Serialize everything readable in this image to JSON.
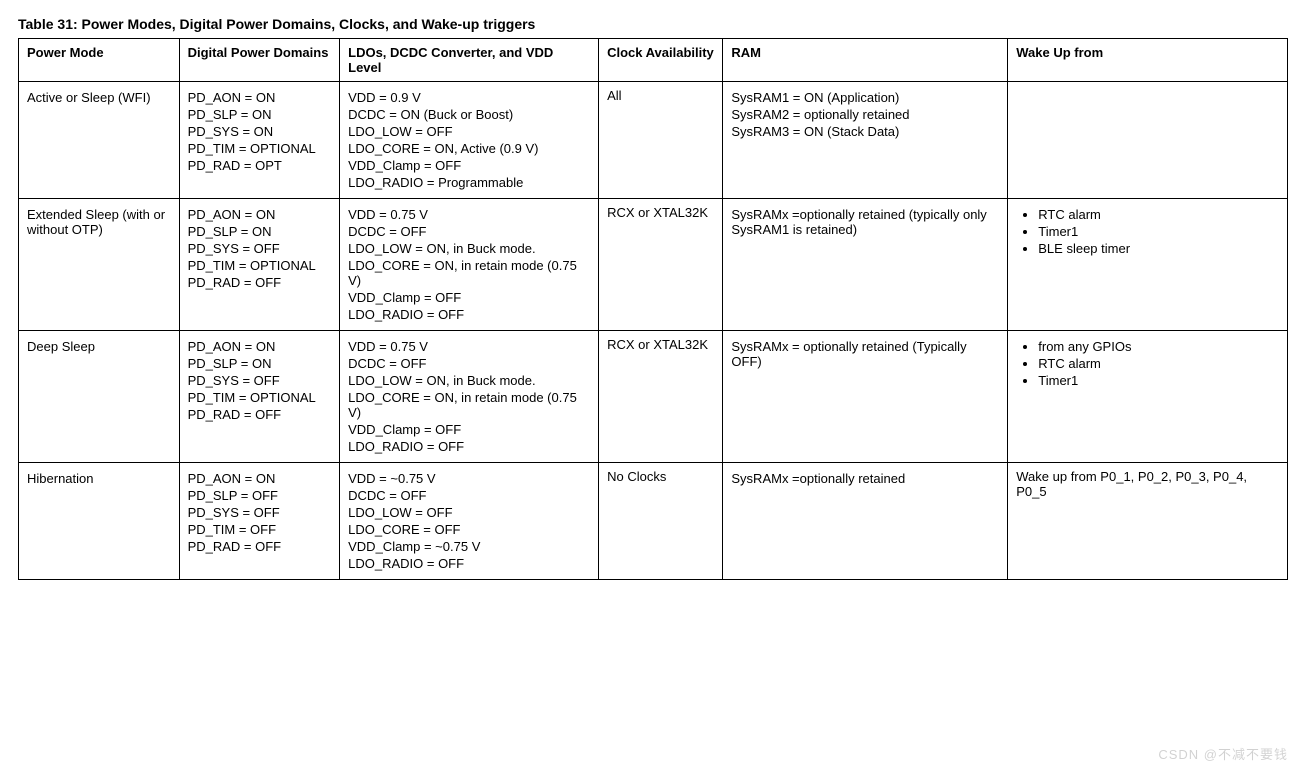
{
  "caption": "Table 31: Power Modes, Digital Power Domains, Clocks, and Wake-up triggers",
  "columns": {
    "pm": "Power Mode",
    "dpd": "Digital Power Domains",
    "ldo": "LDOs, DCDC Converter, and VDD Level",
    "clk": "Clock Availability",
    "ram": "RAM",
    "wake": "Wake Up from"
  },
  "rows": [
    {
      "pm": [
        "Active or Sleep (WFI)"
      ],
      "dpd": [
        "PD_AON = ON",
        "PD_SLP = ON",
        "PD_SYS = ON",
        "PD_TIM = OPTIONAL",
        "PD_RAD = OPT"
      ],
      "ldo": [
        "VDD = 0.9 V",
        "DCDC = ON (Buck or Boost)",
        "LDO_LOW = OFF",
        "LDO_CORE = ON, Active (0.9 V)",
        "VDD_Clamp = OFF",
        "LDO_RADIO = Programmable"
      ],
      "clk": "All",
      "ram": [
        "SysRAM1 = ON (Application)",
        "SysRAM2 = optionally retained",
        "SysRAM3 = ON (Stack Data)"
      ],
      "wake": []
    },
    {
      "pm": [
        "Extended Sleep (with or without OTP)"
      ],
      "dpd": [
        "PD_AON = ON",
        "PD_SLP = ON",
        "PD_SYS = OFF",
        "PD_TIM = OPTIONAL",
        "PD_RAD = OFF"
      ],
      "ldo": [
        "VDD = 0.75 V",
        "DCDC = OFF",
        "LDO_LOW = ON, in Buck mode.",
        "LDO_CORE = ON, in retain mode (0.75 V)",
        "VDD_Clamp = OFF",
        "LDO_RADIO = OFF"
      ],
      "clk": "RCX or XTAL32K",
      "ram": [
        "SysRAMx =optionally retained (typically only SysRAM1 is retained)"
      ],
      "wake": [
        "RTC alarm",
        "Timer1",
        "BLE sleep timer"
      ]
    },
    {
      "pm": [
        "Deep Sleep"
      ],
      "dpd": [
        "PD_AON = ON",
        "PD_SLP = ON",
        "PD_SYS = OFF",
        "PD_TIM = OPTIONAL",
        "PD_RAD = OFF"
      ],
      "ldo": [
        "VDD = 0.75 V",
        "DCDC = OFF",
        "LDO_LOW = ON, in Buck mode.",
        "LDO_CORE = ON, in retain mode (0.75 V)",
        "VDD_Clamp = OFF",
        "LDO_RADIO = OFF"
      ],
      "clk": "RCX or XTAL32K",
      "ram": [
        "SysRAMx = optionally retained (Typically OFF)"
      ],
      "wake": [
        "from any GPIOs",
        "RTC alarm",
        "Timer1"
      ]
    },
    {
      "pm": [
        "Hibernation"
      ],
      "dpd": [
        "PD_AON = ON",
        "PD_SLP = OFF",
        "PD_SYS = OFF",
        "PD_TIM = OFF",
        "PD_RAD = OFF"
      ],
      "ldo": [
        "VDD = ~0.75 V",
        "DCDC = OFF",
        "LDO_LOW = OFF",
        "LDO_CORE = OFF",
        "VDD_Clamp = ~0.75 V",
        "LDO_RADIO = OFF"
      ],
      "clk": "No Clocks",
      "ram": [
        "SysRAMx =optionally retained"
      ],
      "wake_text": "Wake up from P0_1, P0_2, P0_3, P0_4, P0_5"
    }
  ],
  "watermark": "CSDN @不减不要钱"
}
